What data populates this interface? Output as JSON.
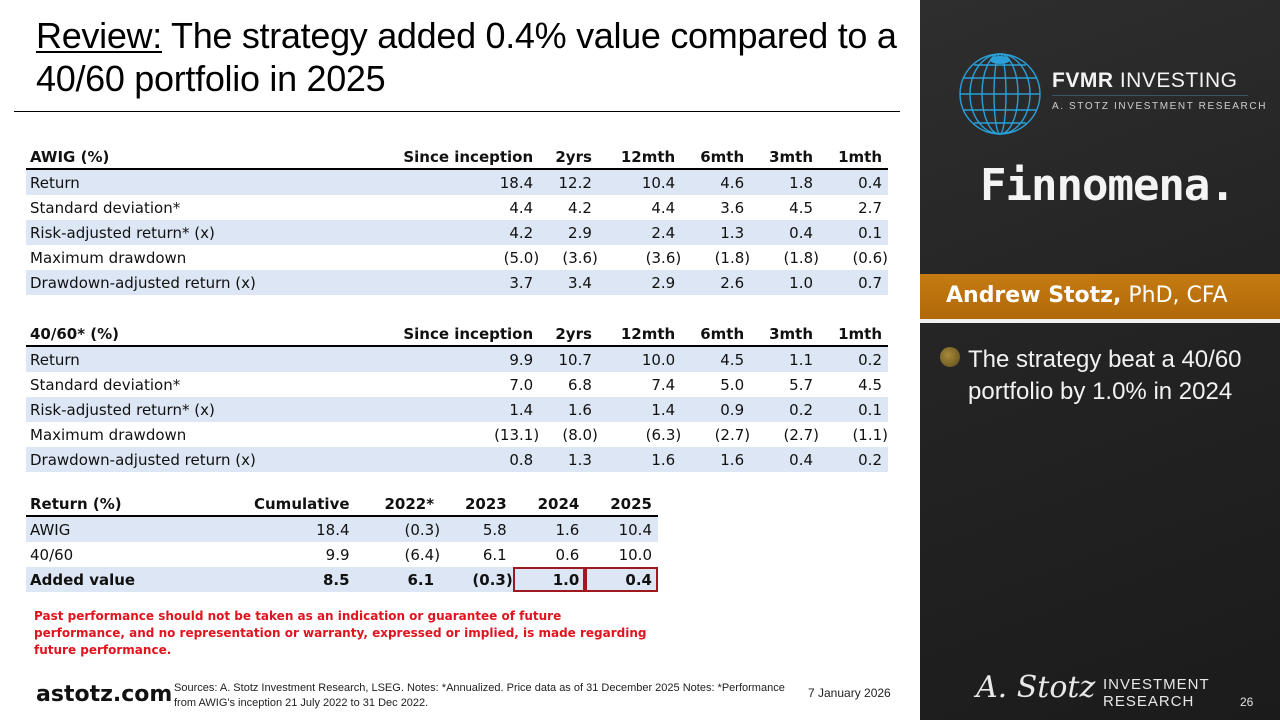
{
  "title": {
    "review_label": "Review:",
    "rest": " The strategy added 0.4% value compared to a 40/60 portfolio in 2025"
  },
  "awig_table": {
    "headers": [
      "AWIG (%)",
      "Since inception",
      "2yrs",
      "12mth",
      "6mth",
      "3mth",
      "1mth"
    ],
    "rows": [
      {
        "label": "Return",
        "values": [
          "18.4",
          "12.2",
          "10.4",
          "4.6",
          "1.8",
          "0.4"
        ]
      },
      {
        "label": "Standard deviation*",
        "values": [
          "4.4",
          "4.2",
          "4.4",
          "3.6",
          "4.5",
          "2.7"
        ]
      },
      {
        "label": "Risk-adjusted return* (x)",
        "values": [
          "4.2",
          "2.9",
          "2.4",
          "1.3",
          "0.4",
          "0.1"
        ]
      },
      {
        "label": "Maximum drawdown",
        "values": [
          "(5.0)",
          "(3.6)",
          "(3.6)",
          "(1.8)",
          "(1.8)",
          "(0.6)"
        ]
      },
      {
        "label": "Drawdown-adjusted return (x)",
        "values": [
          "3.7",
          "3.4",
          "2.9",
          "2.6",
          "1.0",
          "0.7"
        ]
      }
    ]
  },
  "p4060_table": {
    "headers": [
      "40/60* (%)",
      "Since inception",
      "2yrs",
      "12mth",
      "6mth",
      "3mth",
      "1mth"
    ],
    "rows": [
      {
        "label": "Return",
        "values": [
          "9.9",
          "10.7",
          "10.0",
          "4.5",
          "1.1",
          "0.2"
        ]
      },
      {
        "label": "Standard deviation*",
        "values": [
          "7.0",
          "6.8",
          "7.4",
          "5.0",
          "5.7",
          "4.5"
        ]
      },
      {
        "label": "Risk-adjusted return* (x)",
        "values": [
          "1.4",
          "1.6",
          "1.4",
          "0.9",
          "0.2",
          "0.1"
        ]
      },
      {
        "label": "Maximum drawdown",
        "values": [
          "(13.1)",
          "(8.0)",
          "(6.3)",
          "(2.7)",
          "(2.7)",
          "(1.1)"
        ]
      },
      {
        "label": "Drawdown-adjusted return (x)",
        "values": [
          "0.8",
          "1.3",
          "1.6",
          "1.6",
          "0.4",
          "0.2"
        ]
      }
    ]
  },
  "return_table": {
    "headers": [
      "Return (%)",
      "Cumulative",
      "2022*",
      "2023",
      "2024",
      "2025"
    ],
    "rows": [
      {
        "label": "AWIG",
        "values": [
          "18.4",
          "(0.3)",
          "5.8",
          "1.6",
          "10.4"
        ]
      },
      {
        "label": "40/60",
        "values": [
          "9.9",
          "(6.4)",
          "6.1",
          "0.6",
          "10.0"
        ]
      },
      {
        "label": "Added value",
        "values": [
          "8.5",
          "6.1",
          "(0.3)",
          "1.0",
          "0.4"
        ]
      }
    ],
    "highlight_color": "#a0171e"
  },
  "disclaimer": "Past performance should not be taken as an indication or guarantee of future performance, and no representation or warranty, expressed or implied, is made regarding future performance.",
  "footer": {
    "site": "astotz.com",
    "sources": "Sources: A. Stotz Investment Research, LSEG. Notes: *Annualized. Price data as of 31 December 2025 Notes: *Performance from AWIG's inception 21 July 2022 to 31 Dec 2022.",
    "date": "7 January 2026",
    "page_number": "26"
  },
  "sidebar": {
    "fvmr_bold": "FVMR",
    "fvmr_rest": " INVESTING",
    "fvmr_sub": "A. STOTZ INVESTMENT RESEARCH",
    "finnomena": "Finnomena.",
    "presenter_name": "Andrew Stotz,",
    "presenter_creds": " PhD, CFA",
    "bullet": "The strategy beat a 40/60 portfolio by 1.0% in 2024",
    "signature": "A. Stotz",
    "ir_line1": "INVESTMENT",
    "ir_line2": "RESEARCH",
    "accent_color": "#c67b12",
    "globe_color": "#2a9fd8"
  }
}
